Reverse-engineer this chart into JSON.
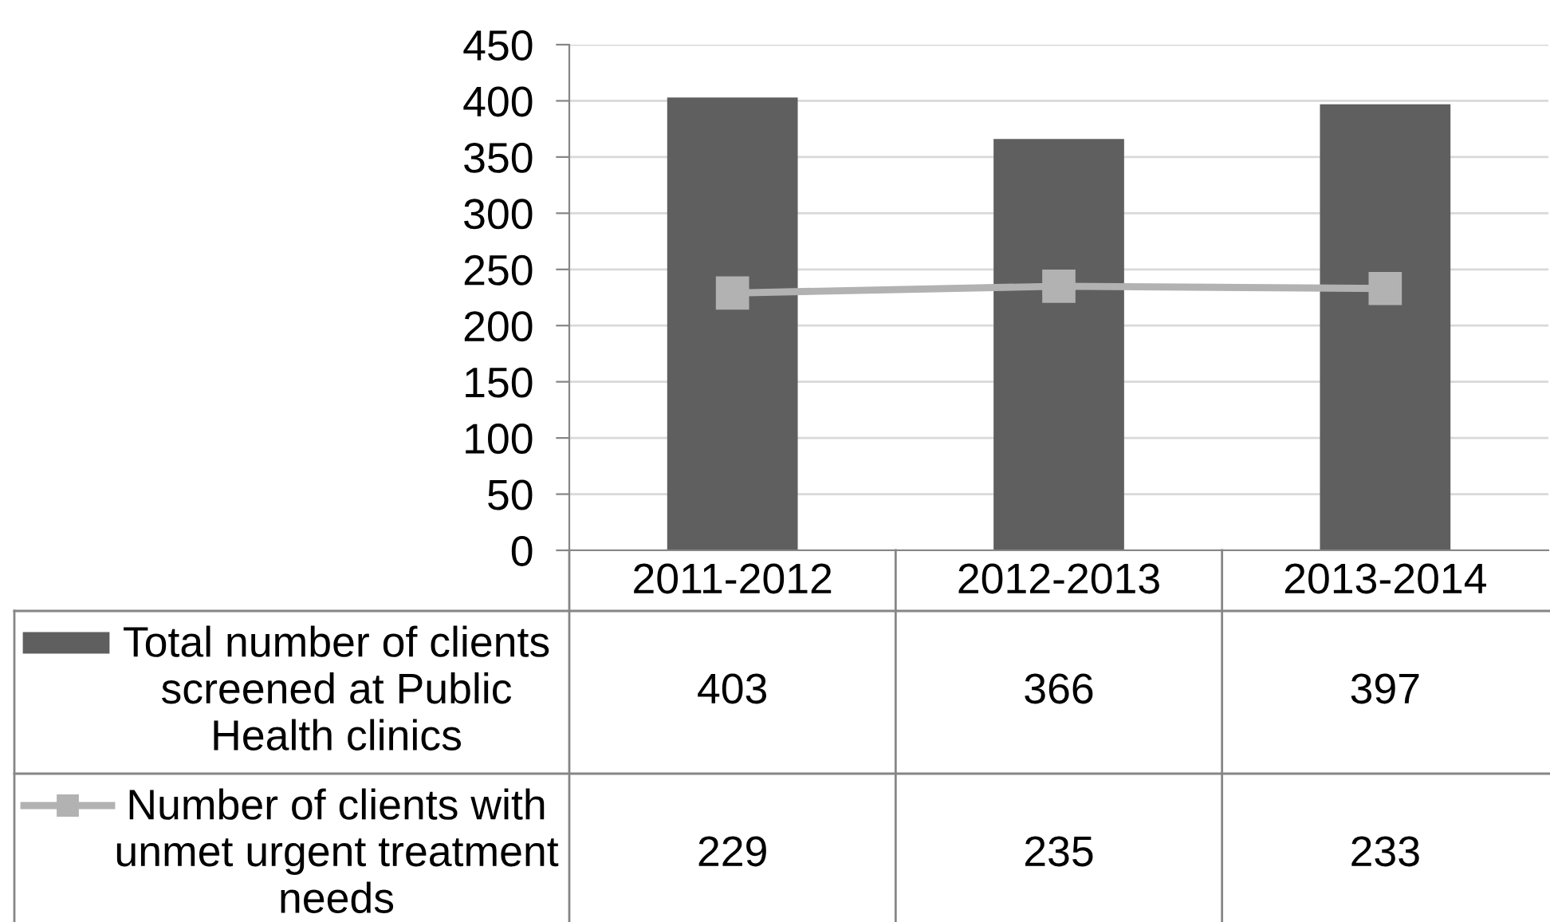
{
  "chart_data": {
    "type": "bar",
    "categories": [
      "2011-2012",
      "2012-2013",
      "2013-2014"
    ],
    "series": [
      {
        "name": "Total number of clients screened at Public Health clinics",
        "color": "#5f5f5f",
        "values": [
          403,
          366,
          397
        ]
      },
      {
        "name": "Number of clients with unmet urgent treatment needs",
        "type": "line",
        "color": "#b2b2b2",
        "values": [
          229,
          235,
          233
        ]
      }
    ],
    "ylim": [
      0,
      450
    ],
    "yticks": [
      0,
      50,
      100,
      150,
      200,
      250,
      300,
      350,
      400,
      450
    ],
    "grid": "y",
    "legend": "bottom",
    "marker": "square",
    "line_style": "solid",
    "data_labels": true
  }
}
